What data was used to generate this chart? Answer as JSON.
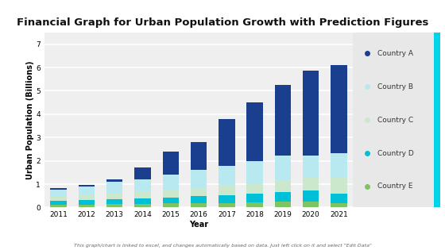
{
  "title": "Financial Graph for Urban Population Growth with Prediction Figures",
  "xlabel": "Year",
  "ylabel": "Urban Population (Billions)",
  "years": [
    2011,
    2012,
    2013,
    2014,
    2015,
    2016,
    2017,
    2018,
    2019,
    2020,
    2021
  ],
  "countries": [
    "Country E",
    "Country D",
    "Country C",
    "Country B",
    "Country A"
  ],
  "colors_map": {
    "Country E": "#7dc463",
    "Country D": "#00c0d8",
    "Country C": "#cce8cc",
    "Country B": "#b8e8f0",
    "Country A": "#1a3f8f"
  },
  "data": {
    "Country E": [
      0.12,
      0.13,
      0.14,
      0.15,
      0.17,
      0.18,
      0.2,
      0.22,
      0.24,
      0.27,
      0.2
    ],
    "Country D": [
      0.18,
      0.2,
      0.22,
      0.24,
      0.27,
      0.3,
      0.33,
      0.37,
      0.41,
      0.46,
      0.38
    ],
    "Country C": [
      0.2,
      0.22,
      0.25,
      0.28,
      0.32,
      0.36,
      0.4,
      0.46,
      0.52,
      0.58,
      0.7
    ],
    "Country B": [
      0.25,
      0.35,
      0.5,
      0.55,
      0.65,
      0.76,
      0.85,
      0.95,
      1.05,
      0.9,
      1.05
    ],
    "Country A": [
      0.08,
      0.08,
      0.1,
      0.5,
      1.0,
      1.2,
      2.0,
      2.5,
      3.05,
      3.65,
      3.78
    ]
  },
  "ylim": [
    0,
    7.5
  ],
  "yticks": [
    0,
    1,
    2,
    3,
    4,
    5,
    6,
    7
  ],
  "bg_color": "#ffffff",
  "plot_bg_color": "#efefef",
  "grid_color": "#ffffff",
  "legend_bg": "#e8e8e8",
  "accent_color": "#00d4e8",
  "footnote": "This graph/chart is linked to excel, and changes automatically based on data. Just left click on it and select \"Edit Data\"",
  "title_fontsize": 9.5,
  "label_fontsize": 7,
  "tick_fontsize": 6.5,
  "legend_fontsize": 6.5,
  "legend_colors": [
    "#1a3f8f",
    "#b8e8f0",
    "#cce8cc",
    "#00c0d8",
    "#7dc463"
  ],
  "legend_labels": [
    "Country A",
    "Country B",
    "Country C",
    "Country D",
    "Country E"
  ]
}
